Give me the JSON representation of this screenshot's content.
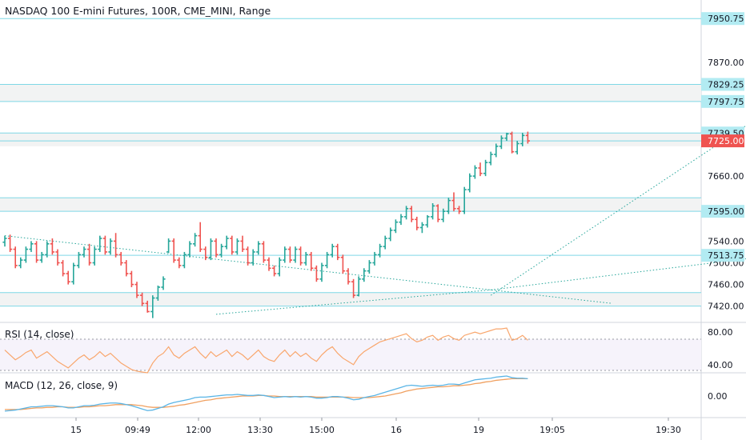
{
  "chart_title": "NASDAQ 100 E-mini Futures, 100R, CME_MINI, Range",
  "indicators": {
    "rsi_label": "RSI (14, close)",
    "macd_label": "MACD (12, 26, close, 9)"
  },
  "price_axis": {
    "plain_ticks": [
      "7870.00",
      "7660.00",
      "7540.00",
      "7500.00",
      "7460.00",
      "7420.00"
    ],
    "level_labels": [
      "7950.75",
      "7829.25",
      "7797.75",
      "7739.50",
      "7595.00",
      "7513.75"
    ],
    "last_price": "7725.00"
  },
  "rsi_axis": [
    "80.00",
    "40.00"
  ],
  "macd_axis": [
    "0.00"
  ],
  "time_axis": [
    "15",
    "09:49",
    "12:00",
    "13:30",
    "15:00",
    "16",
    "19",
    "19:05",
    "19:30"
  ],
  "colors": {
    "up_bar": "#26a69a",
    "down_bar": "#ef5350",
    "level_line": "#7fd8e6",
    "zone_fill": "#f2f3f3",
    "trendline": "#26a69a",
    "rsi_line": "#f9a66c",
    "macd_line": "#5ab5e6",
    "signal_line": "#f0a060",
    "last_price_bg": "#ef5350",
    "level_label_bg": "#b2ebf2"
  },
  "chart_data": {
    "type": "bar",
    "price_range": [
      7390,
      7985
    ],
    "bars_ohlc": [
      [
        7538,
        7550,
        7530,
        7545
      ],
      [
        7545,
        7552,
        7520,
        7525
      ],
      [
        7525,
        7530,
        7490,
        7495
      ],
      [
        7495,
        7510,
        7490,
        7505
      ],
      [
        7505,
        7530,
        7500,
        7525
      ],
      [
        7525,
        7540,
        7520,
        7535
      ],
      [
        7535,
        7540,
        7500,
        7505
      ],
      [
        7505,
        7520,
        7500,
        7515
      ],
      [
        7515,
        7540,
        7510,
        7535
      ],
      [
        7535,
        7545,
        7515,
        7520
      ],
      [
        7520,
        7525,
        7495,
        7500
      ],
      [
        7500,
        7505,
        7475,
        7480
      ],
      [
        7480,
        7485,
        7460,
        7465
      ],
      [
        7465,
        7500,
        7460,
        7495
      ],
      [
        7495,
        7520,
        7490,
        7515
      ],
      [
        7515,
        7530,
        7510,
        7525
      ],
      [
        7525,
        7535,
        7495,
        7500
      ],
      [
        7500,
        7530,
        7495,
        7525
      ],
      [
        7525,
        7550,
        7520,
        7545
      ],
      [
        7545,
        7550,
        7515,
        7520
      ],
      [
        7520,
        7545,
        7515,
        7540
      ],
      [
        7540,
        7555,
        7510,
        7515
      ],
      [
        7515,
        7520,
        7495,
        7500
      ],
      [
        7500,
        7505,
        7475,
        7480
      ],
      [
        7480,
        7485,
        7455,
        7460
      ],
      [
        7460,
        7465,
        7435,
        7440
      ],
      [
        7440,
        7445,
        7420,
        7425
      ],
      [
        7425,
        7430,
        7408,
        7410
      ],
      [
        7410,
        7440,
        7398,
        7435
      ],
      [
        7435,
        7458,
        7430,
        7455
      ],
      [
        7455,
        7475,
        7450,
        7470
      ],
      [
        7520,
        7545,
        7518,
        7540
      ],
      [
        7540,
        7545,
        7500,
        7505
      ],
      [
        7505,
        7510,
        7490,
        7495
      ],
      [
        7495,
        7520,
        7490,
        7515
      ],
      [
        7515,
        7540,
        7510,
        7535
      ],
      [
        7535,
        7555,
        7530,
        7550
      ],
      [
        7550,
        7575,
        7520,
        7525
      ],
      [
        7525,
        7530,
        7505,
        7510
      ],
      [
        7510,
        7545,
        7505,
        7540
      ],
      [
        7540,
        7545,
        7510,
        7515
      ],
      [
        7515,
        7535,
        7510,
        7530
      ],
      [
        7530,
        7550,
        7525,
        7545
      ],
      [
        7545,
        7550,
        7515,
        7520
      ],
      [
        7520,
        7545,
        7515,
        7540
      ],
      [
        7540,
        7550,
        7520,
        7525
      ],
      [
        7525,
        7530,
        7495,
        7500
      ],
      [
        7500,
        7525,
        7495,
        7520
      ],
      [
        7520,
        7540,
        7515,
        7535
      ],
      [
        7535,
        7540,
        7500,
        7505
      ],
      [
        7505,
        7510,
        7485,
        7490
      ],
      [
        7490,
        7495,
        7475,
        7480
      ],
      [
        7480,
        7510,
        7475,
        7505
      ],
      [
        7505,
        7530,
        7500,
        7525
      ],
      [
        7525,
        7530,
        7500,
        7505
      ],
      [
        7505,
        7530,
        7500,
        7525
      ],
      [
        7525,
        7530,
        7495,
        7500
      ],
      [
        7500,
        7520,
        7495,
        7515
      ],
      [
        7515,
        7520,
        7485,
        7490
      ],
      [
        7490,
        7495,
        7465,
        7470
      ],
      [
        7470,
        7500,
        7465,
        7495
      ],
      [
        7495,
        7520,
        7490,
        7515
      ],
      [
        7515,
        7535,
        7510,
        7530
      ],
      [
        7530,
        7535,
        7505,
        7510
      ],
      [
        7510,
        7515,
        7480,
        7485
      ],
      [
        7485,
        7490,
        7460,
        7465
      ],
      [
        7465,
        7470,
        7435,
        7440
      ],
      [
        7440,
        7475,
        7438,
        7470
      ],
      [
        7470,
        7490,
        7465,
        7485
      ],
      [
        7485,
        7505,
        7480,
        7500
      ],
      [
        7500,
        7520,
        7495,
        7515
      ],
      [
        7515,
        7535,
        7510,
        7530
      ],
      [
        7530,
        7550,
        7525,
        7545
      ],
      [
        7545,
        7565,
        7540,
        7560
      ],
      [
        7560,
        7580,
        7555,
        7575
      ],
      [
        7575,
        7590,
        7570,
        7585
      ],
      [
        7585,
        7605,
        7580,
        7600
      ],
      [
        7600,
        7605,
        7575,
        7580
      ],
      [
        7580,
        7585,
        7560,
        7565
      ],
      [
        7565,
        7575,
        7555,
        7570
      ],
      [
        7570,
        7588,
        7565,
        7585
      ],
      [
        7585,
        7610,
        7580,
        7605
      ],
      [
        7605,
        7608,
        7575,
        7580
      ],
      [
        7580,
        7600,
        7575,
        7595
      ],
      [
        7595,
        7620,
        7590,
        7615
      ],
      [
        7615,
        7630,
        7595,
        7600
      ],
      [
        7600,
        7605,
        7590,
        7595
      ],
      [
        7595,
        7640,
        7590,
        7635
      ],
      [
        7635,
        7665,
        7630,
        7660
      ],
      [
        7660,
        7680,
        7655,
        7675
      ],
      [
        7675,
        7685,
        7660,
        7665
      ],
      [
        7665,
        7690,
        7660,
        7685
      ],
      [
        7685,
        7705,
        7680,
        7700
      ],
      [
        7700,
        7720,
        7695,
        7715
      ],
      [
        7715,
        7735,
        7710,
        7730
      ],
      [
        7730,
        7740,
        7725,
        7738
      ],
      [
        7738,
        7742,
        7702,
        7705
      ],
      [
        7705,
        7725,
        7700,
        7720
      ],
      [
        7720,
        7740,
        7715,
        7735
      ],
      [
        7735,
        7742,
        7720,
        7725
      ]
    ],
    "levels": [
      7950.75,
      7829.25,
      7797.75,
      7739.5,
      7725.0,
      7620.0,
      7595.0,
      7513.75,
      7445.0,
      7420.0
    ],
    "zones": [
      [
        7797.75,
        7829.25
      ],
      [
        7715.0,
        7739.5
      ],
      [
        7595.0,
        7620.0
      ],
      [
        7420.0,
        7445.0
      ]
    ],
    "trendlines": [
      {
        "from": [
          7550,
          0
        ],
        "to": [
          7425,
          115
        ]
      },
      {
        "from": [
          7405,
          40
        ],
        "to": [
          7450,
          92
        ]
      },
      {
        "from": [
          7440,
          92
        ],
        "to": [
          7790,
          146
        ]
      },
      {
        "from": [
          7450,
          92
        ],
        "to": [
          7520,
          151
        ]
      }
    ],
    "rsi": {
      "ylim": [
        30,
        90
      ],
      "values": [
        58,
        52,
        46,
        50,
        55,
        58,
        48,
        52,
        56,
        50,
        44,
        40,
        36,
        42,
        48,
        52,
        46,
        50,
        56,
        50,
        54,
        48,
        42,
        38,
        34,
        32,
        31,
        30,
        42,
        50,
        54,
        62,
        52,
        48,
        54,
        58,
        62,
        54,
        48,
        56,
        50,
        54,
        58,
        50,
        56,
        52,
        46,
        52,
        58,
        50,
        46,
        44,
        52,
        58,
        50,
        56,
        50,
        54,
        48,
        44,
        52,
        58,
        62,
        54,
        48,
        44,
        40,
        50,
        56,
        60,
        64,
        68,
        70,
        72,
        74,
        76,
        78,
        72,
        68,
        70,
        74,
        76,
        70,
        74,
        76,
        72,
        70,
        76,
        78,
        80,
        78,
        80,
        82,
        84,
        84,
        85,
        70,
        72,
        76,
        70
      ]
    },
    "macd": {
      "ylim": [
        -40,
        40
      ],
      "macd": [
        -28,
        -27,
        -26,
        -24,
        -22,
        -20,
        -20,
        -19,
        -18,
        -18,
        -19,
        -20,
        -22,
        -22,
        -20,
        -18,
        -18,
        -17,
        -15,
        -14,
        -13,
        -13,
        -14,
        -16,
        -18,
        -21,
        -24,
        -27,
        -26,
        -23,
        -20,
        -15,
        -12,
        -10,
        -8,
        -6,
        -3,
        -2,
        -2,
        -1,
        0,
        1,
        2,
        2,
        3,
        2,
        1,
        1,
        2,
        1,
        -1,
        -3,
        -2,
        -1,
        -2,
        -1,
        -2,
        -1,
        -2,
        -4,
        -4,
        -3,
        -1,
        -1,
        -2,
        -4,
        -7,
        -6,
        -3,
        -1,
        1,
        4,
        7,
        10,
        13,
        16,
        19,
        20,
        19,
        18,
        19,
        20,
        19,
        20,
        22,
        22,
        21,
        24,
        27,
        30,
        31,
        32,
        33,
        35,
        36,
        37,
        34,
        33,
        33,
        32
      ],
      "signal": [
        -25,
        -25,
        -25,
        -25,
        -24,
        -23,
        -22,
        -22,
        -21,
        -21,
        -20,
        -20,
        -21,
        -21,
        -21,
        -20,
        -20,
        -19,
        -18,
        -18,
        -17,
        -16,
        -16,
        -16,
        -16,
        -17,
        -18,
        -20,
        -21,
        -21,
        -21,
        -20,
        -19,
        -17,
        -16,
        -14,
        -12,
        -10,
        -8,
        -7,
        -5,
        -4,
        -3,
        -2,
        -1,
        0,
        0,
        0,
        1,
        1,
        0,
        0,
        -1,
        -1,
        -1,
        -1,
        -1,
        -1,
        -1,
        -2,
        -2,
        -2,
        -2,
        -2,
        -2,
        -2,
        -3,
        -3,
        -3,
        -3,
        -2,
        -1,
        0,
        2,
        4,
        6,
        9,
        11,
        13,
        14,
        15,
        16,
        17,
        17,
        18,
        19,
        19,
        20,
        21,
        23,
        24,
        26,
        27,
        29,
        30,
        31,
        32,
        32,
        32,
        32
      ]
    }
  }
}
